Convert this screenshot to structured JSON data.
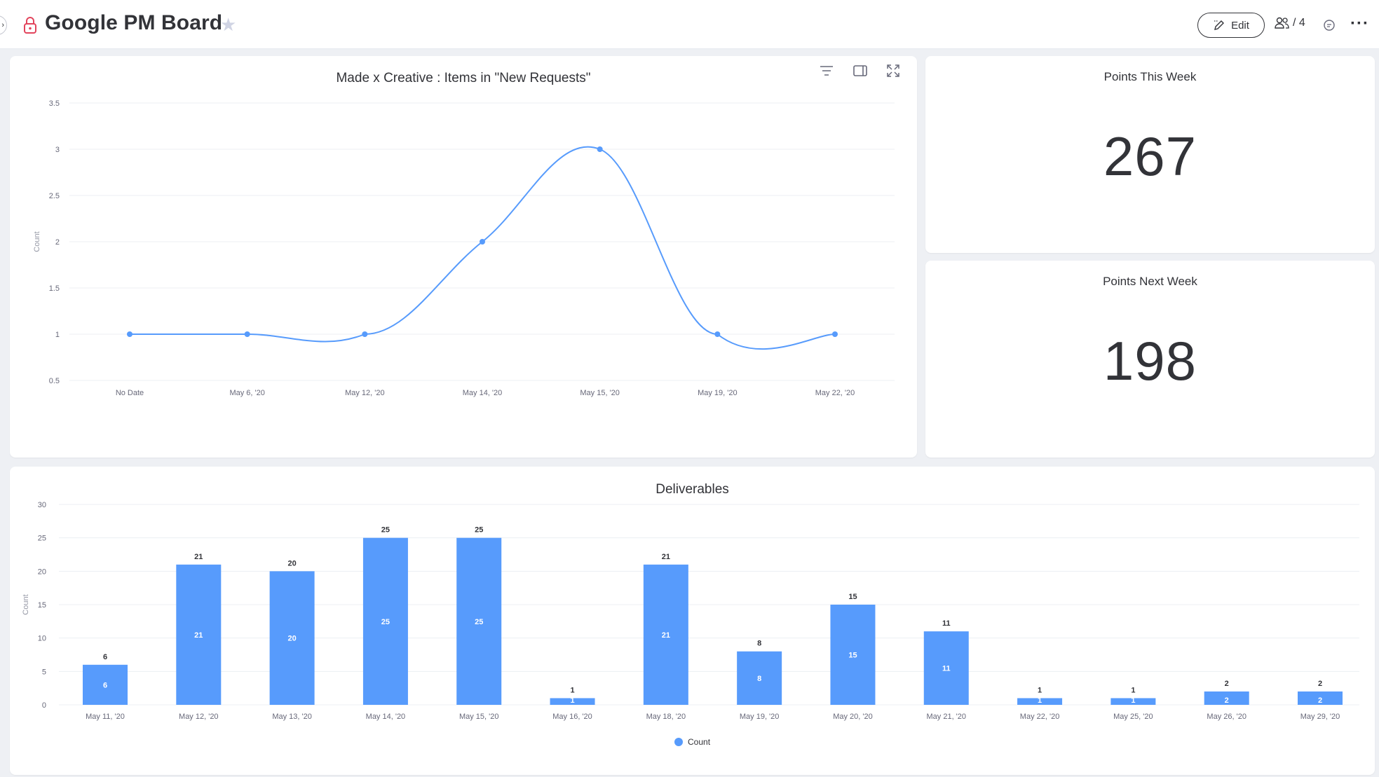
{
  "board": {
    "title": "Google PM Board"
  },
  "header": {
    "edit_label": "Edit",
    "members_count": "/ 4"
  },
  "points_this_week": {
    "title": "Points This Week",
    "value": "267"
  },
  "points_next_week": {
    "title": "Points Next Week",
    "value": "198"
  },
  "colors": {
    "accent": "#579bfc",
    "text": "#323338",
    "grid": "#eceff3"
  },
  "chart_data": [
    {
      "type": "line",
      "title": "Made x Creative : Items in \"New Requests\"",
      "xlabel": "",
      "ylabel": "Count",
      "categories": [
        "No Date",
        "May 6, '20",
        "May 12, '20",
        "May 14, '20",
        "May 15, '20",
        "May 19, '20",
        "May 22, '20"
      ],
      "values": [
        1,
        1,
        1,
        2,
        3,
        1,
        1
      ],
      "yticks": [
        "0.5",
        "1",
        "1.5",
        "2",
        "2.5",
        "3",
        "3.5"
      ],
      "ylim": [
        0.5,
        3.5
      ],
      "grid": true
    },
    {
      "type": "bar",
      "title": "Deliverables",
      "xlabel": "",
      "ylabel": "Count",
      "categories": [
        "May 11, '20",
        "May 12, '20",
        "May 13, '20",
        "May 14, '20",
        "May 15, '20",
        "May 16, '20",
        "May 18, '20",
        "May 19, '20",
        "May 20, '20",
        "May 21, '20",
        "May 22, '20",
        "May 25, '20",
        "May 26, '20",
        "May 29, '20"
      ],
      "series": [
        {
          "name": "Count",
          "values": [
            6,
            21,
            20,
            25,
            25,
            1,
            21,
            8,
            15,
            11,
            1,
            1,
            2,
            2
          ]
        }
      ],
      "yticks": [
        "0",
        "5",
        "10",
        "15",
        "20",
        "25",
        "30"
      ],
      "ylim": [
        0,
        30
      ],
      "legend": "bottom-center",
      "grid": true
    }
  ]
}
